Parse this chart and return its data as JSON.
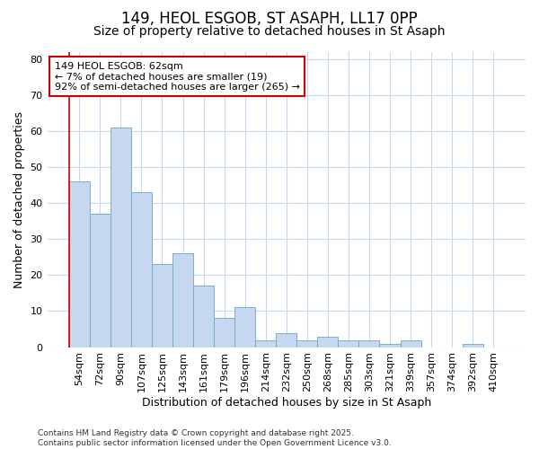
{
  "title1": "149, HEOL ESGOB, ST ASAPH, LL17 0PP",
  "title2": "Size of property relative to detached houses in St Asaph",
  "xlabel": "Distribution of detached houses by size in St Asaph",
  "ylabel": "Number of detached properties",
  "categories": [
    "54sqm",
    "72sqm",
    "90sqm",
    "107sqm",
    "125sqm",
    "143sqm",
    "161sqm",
    "179sqm",
    "196sqm",
    "214sqm",
    "232sqm",
    "250sqm",
    "268sqm",
    "285sqm",
    "303sqm",
    "321sqm",
    "339sqm",
    "357sqm",
    "374sqm",
    "392sqm",
    "410sqm"
  ],
  "values": [
    46,
    37,
    61,
    43,
    23,
    26,
    17,
    8,
    11,
    2,
    4,
    2,
    3,
    2,
    2,
    1,
    2,
    0,
    0,
    1,
    0
  ],
  "bar_color": "#c5d8f0",
  "bar_edge_color": "#7aadd4",
  "background_color": "#ffffff",
  "grid_color": "#c8d8ee",
  "annotation_box_text": "149 HEOL ESGOB: 62sqm\n← 7% of detached houses are smaller (19)\n92% of semi-detached houses are larger (265) →",
  "annotation_box_color": "#ffffff",
  "annotation_box_edge_color": "#cc0000",
  "vline_color": "#cc0000",
  "ylim": [
    0,
    82
  ],
  "yticks": [
    0,
    10,
    20,
    30,
    40,
    50,
    60,
    70,
    80
  ],
  "footer_text": "Contains HM Land Registry data © Crown copyright and database right 2025.\nContains public sector information licensed under the Open Government Licence v3.0.",
  "title1_fontsize": 12,
  "title2_fontsize": 10,
  "axis_label_fontsize": 9,
  "tick_fontsize": 8,
  "annotation_fontsize": 8,
  "footer_fontsize": 6.5
}
